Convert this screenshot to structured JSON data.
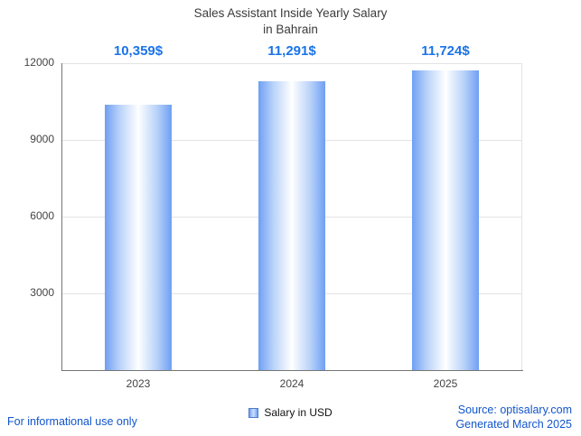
{
  "title": {
    "line1": "Sales Assistant Inside Yearly Salary",
    "line2": "in Bahrain"
  },
  "chart_data": {
    "type": "bar",
    "categories": [
      "2023",
      "2024",
      "2025"
    ],
    "values": [
      10359,
      11291,
      11724
    ],
    "value_labels": [
      "10,359$",
      "11,291$",
      "11,724$"
    ],
    "series": [
      {
        "name": "Salary in USD",
        "values": [
          10359,
          11291,
          11724
        ]
      }
    ],
    "title": "Sales Assistant Inside Yearly Salary in Bahrain",
    "xlabel": "",
    "ylabel": "",
    "ylim": [
      0,
      12000
    ],
    "yticks": [
      3000,
      6000,
      9000,
      12000
    ],
    "grid": true,
    "legend_position": "bottom"
  },
  "legend": {
    "label": "Salary in USD",
    "swatch_color": "#6f9ff3"
  },
  "footer": {
    "left": "For informational use only",
    "source": "Source: optisalary.com",
    "generated": "Generated March 2025"
  },
  "colors": {
    "value_label": "#1a73e8",
    "link_text": "#1155cc",
    "bar_edge": "#6f9ff3",
    "bar_center": "#ffffff",
    "grid": "#e3e3e3",
    "axis": "#757575"
  }
}
